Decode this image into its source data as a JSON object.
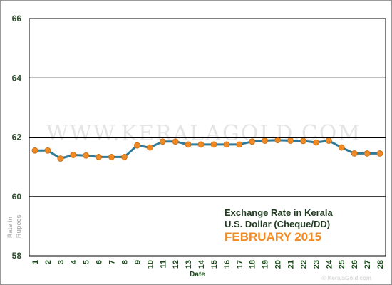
{
  "chart_data": {
    "type": "line",
    "title_lines": [
      "Exchange Rate in Kerala",
      "U.S. Dollar (Cheque/DD)",
      "FEBRUARY 2015"
    ],
    "xlabel": "Date",
    "ylabel_lines": [
      "Rate in",
      "Rupees"
    ],
    "watermark": "WWW.KERALAGOLD.COM",
    "credit": "© KeralaGold.com",
    "ylim": [
      58,
      66
    ],
    "yticks": [
      58,
      60,
      62,
      64,
      66
    ],
    "grid": true,
    "x": [
      1,
      2,
      3,
      4,
      5,
      6,
      7,
      8,
      9,
      10,
      11,
      12,
      13,
      14,
      15,
      16,
      17,
      18,
      19,
      20,
      21,
      22,
      23,
      24,
      25,
      26,
      27,
      28
    ],
    "x_labels": [
      "1",
      "2",
      "3",
      "4",
      "5",
      "6",
      "7",
      "8",
      "9",
      "10",
      "11",
      "12",
      "13",
      "14",
      "15",
      "16",
      "17",
      "18",
      "19",
      "20",
      "21",
      "22",
      "23",
      "24",
      "25",
      "26",
      "27",
      "28"
    ],
    "series": [
      {
        "values": [
          61.55,
          61.55,
          61.28,
          61.4,
          61.38,
          61.33,
          61.33,
          61.33,
          61.72,
          61.65,
          61.85,
          61.85,
          61.75,
          61.75,
          61.75,
          61.75,
          61.75,
          61.85,
          61.88,
          61.9,
          61.88,
          61.87,
          61.82,
          61.88,
          61.65,
          61.45,
          61.45,
          61.45
        ]
      }
    ],
    "colors": {
      "line": "#2e7a98",
      "marker": "#f08a24",
      "grid": "#000000"
    }
  }
}
